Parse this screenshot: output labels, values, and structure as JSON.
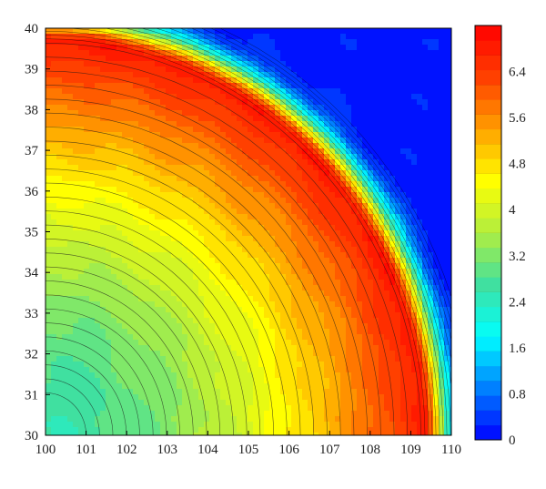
{
  "chart_data": {
    "type": "heatmap",
    "subtype": "filled-contour",
    "title": "",
    "xlabel": "",
    "ylabel": "",
    "xlim": [
      100,
      110
    ],
    "ylim": [
      30,
      40
    ],
    "x_ticks": [
      "100",
      "101",
      "102",
      "103",
      "104",
      "105",
      "106",
      "107",
      "108",
      "109",
      "110"
    ],
    "y_ticks": [
      "30",
      "31",
      "32",
      "33",
      "34",
      "35",
      "36",
      "37",
      "38",
      "39",
      "40"
    ],
    "colorbar": {
      "range": [
        0,
        7.2
      ],
      "levels": 28,
      "tick_values": [
        0,
        0.8,
        1.6,
        2.4,
        3.2,
        4,
        4.8,
        5.6,
        6.4
      ],
      "tick_labels": [
        "0",
        "0.8",
        "1.6",
        "2.4",
        "3.2",
        "4",
        "4.8",
        "5.6",
        "6.4"
      ],
      "colors": [
        "#0000ff",
        "#0080ff",
        "#00ffff",
        "#40e0a0",
        "#b0ee40",
        "#ffff00",
        "#ffa000",
        "#ff4000",
        "#ff0000"
      ]
    },
    "field_description": {
      "center": [
        100,
        30
      ],
      "peak_value": 7.0,
      "approx_values": [
        {
          "x": 100,
          "y": 39.1,
          "value": 6.8
        },
        {
          "x": 104.7,
          "y": 37.9,
          "value": 6.7
        },
        {
          "x": 107.2,
          "y": 35.7,
          "value": 6.9
        },
        {
          "x": 109.1,
          "y": 30.5,
          "value": 6.6
        },
        {
          "x": 102,
          "y": 37,
          "value": 4.6
        },
        {
          "x": 100.5,
          "y": 31.5,
          "value": 3.4
        },
        {
          "x": 104,
          "y": 33,
          "value": 4.0
        },
        {
          "x": 109.5,
          "y": 39.5,
          "value": 0.2
        },
        {
          "x": 110,
          "y": 36,
          "value": 0.4
        }
      ]
    }
  }
}
